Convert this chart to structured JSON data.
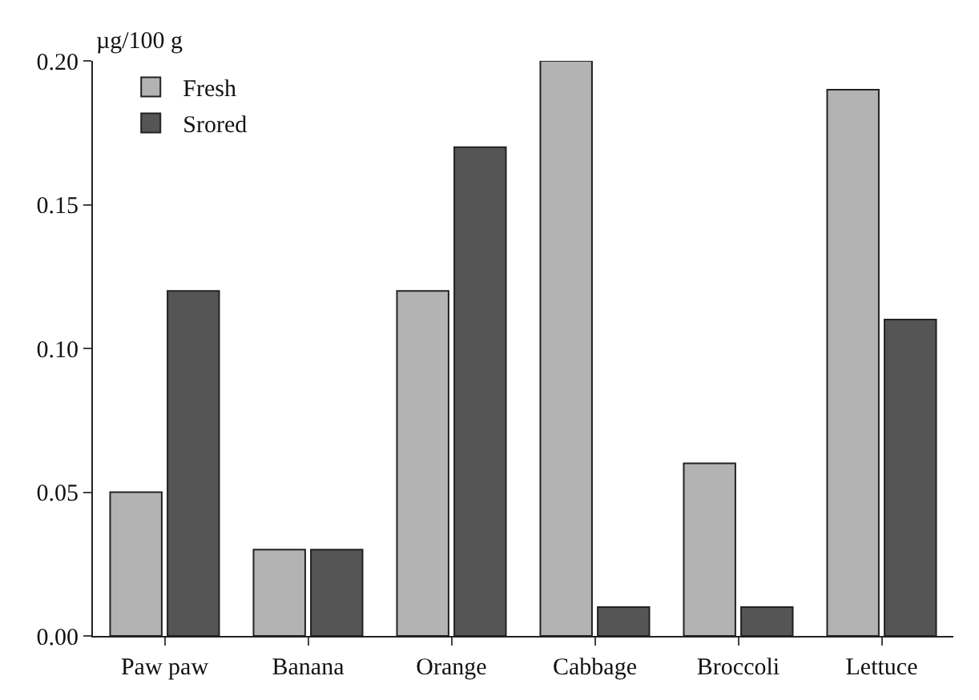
{
  "chart_data": {
    "type": "bar",
    "ylabel": "µg/100 g",
    "categories": [
      "Paw paw",
      "Banana",
      "Orange",
      "Cabbage",
      "Broccoli",
      "Lettuce"
    ],
    "series": [
      {
        "name": "Fresh",
        "color": "#b3b3b3",
        "values": [
          0.05,
          0.03,
          0.12,
          0.2,
          0.06,
          0.19
        ]
      },
      {
        "name": "Srored",
        "color": "#555555",
        "values": [
          0.12,
          0.03,
          0.17,
          0.01,
          0.01,
          0.11
        ]
      }
    ],
    "ylim": [
      0,
      0.2
    ],
    "yticks": [
      {
        "value": 0,
        "label": "0.00"
      },
      {
        "value": 0.05,
        "label": "0.05"
      },
      {
        "value": 0.1,
        "label": "0.10"
      },
      {
        "value": 0.15,
        "label": "0.15"
      },
      {
        "value": 0.2,
        "label": "0.20"
      }
    ],
    "legend": "top left"
  }
}
